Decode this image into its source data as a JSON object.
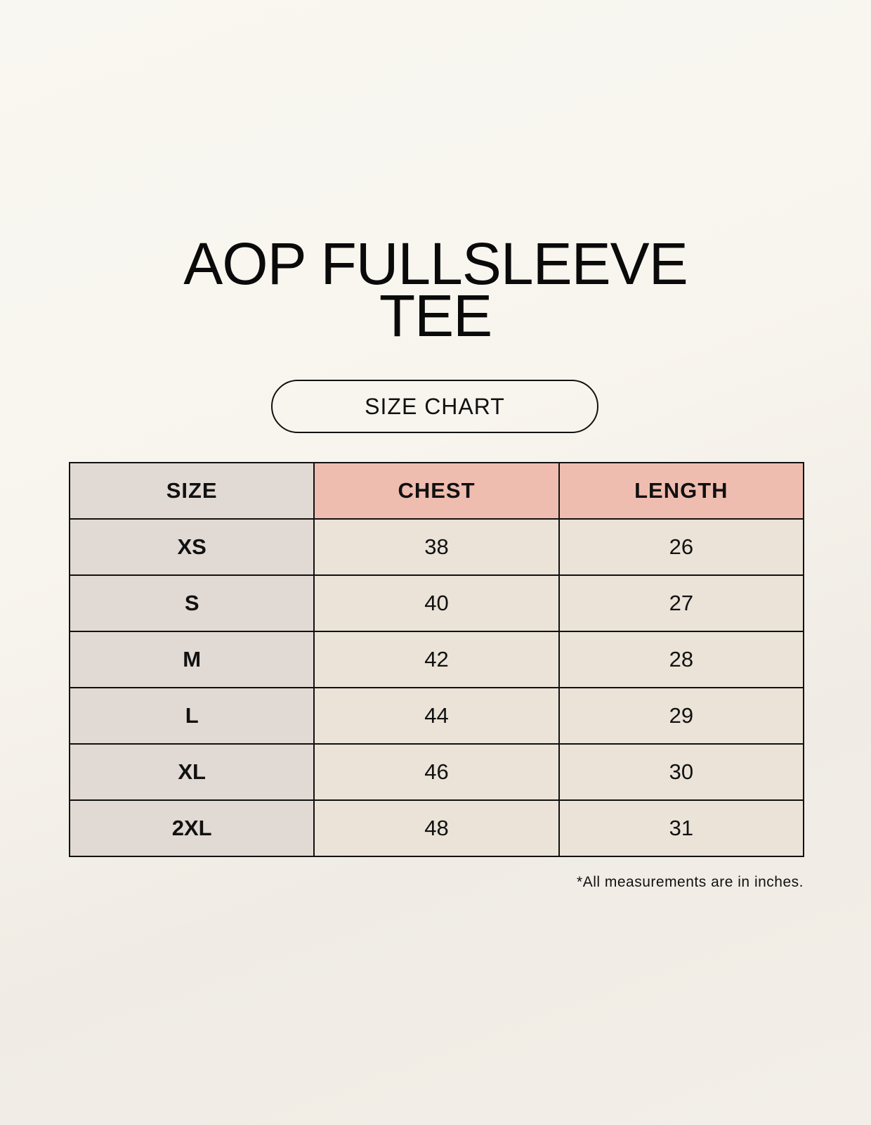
{
  "title_lines": [
    "AOP FULLSLEEVE",
    "TEE"
  ],
  "badge": "SIZE CHART",
  "table": {
    "headers": [
      "SIZE",
      "CHEST",
      "LENGTH"
    ],
    "rows": [
      [
        "XS",
        "38",
        "26"
      ],
      [
        "S",
        "40",
        "27"
      ],
      [
        "M",
        "42",
        "28"
      ],
      [
        "L",
        "44",
        "29"
      ],
      [
        "XL",
        "46",
        "30"
      ],
      [
        "2XL",
        "48",
        "31"
      ]
    ]
  },
  "footnote": "*All measurements are in inches.",
  "colors": {
    "size_column": "#e1d9d3",
    "header_accent": "#efbdb0",
    "value_cells": "#ebe3d8"
  }
}
